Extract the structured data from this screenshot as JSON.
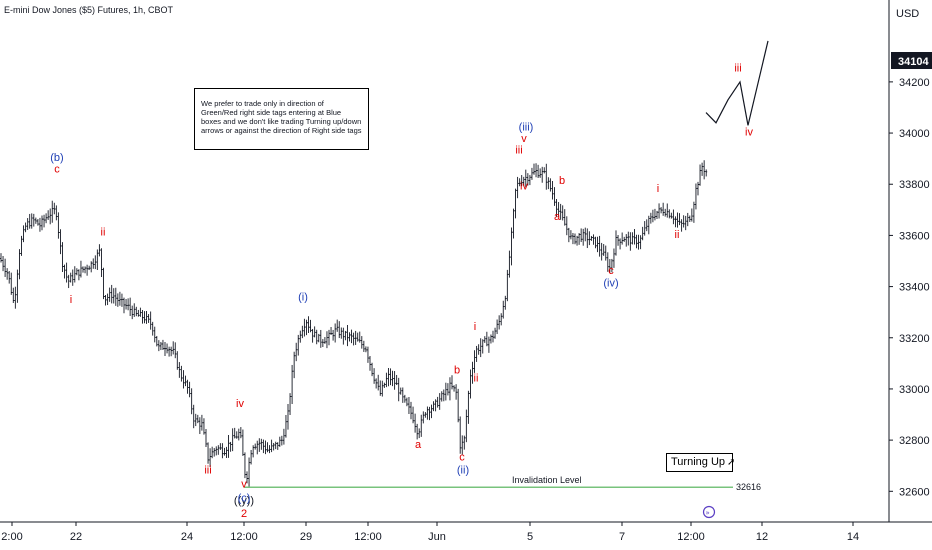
{
  "header": {
    "symbol": "E-mini Dow Jones ($5) Futures, 1h, CBOT"
  },
  "note": {
    "text": "We prefer to trade only in direction of Green/Red right side tags entering at Blue boxes and we don't like trading Turning up/down arrows or against the direction of Right side tags"
  },
  "turning_label": {
    "text": "Turning Up",
    "icon": "arrow-up-right-icon"
  },
  "replay_icon": "replay-icon",
  "colors": {
    "red": "#e00000",
    "blue": "#1f3fb5",
    "black": "#131722",
    "green": "#4caf50",
    "bg": "#ffffff"
  },
  "chart_data": {
    "type": "ohlc",
    "currency": "USD",
    "y_ticks": [
      32600,
      32800,
      33000,
      33200,
      33400,
      33600,
      33800,
      34000,
      34200
    ],
    "ylim": [
      32480,
      34520
    ],
    "current_price": "34104",
    "x_ticks": [
      "2:00",
      "22",
      "24",
      "12:00",
      "29",
      "12:00",
      "Jun",
      "5",
      "7",
      "12:00",
      "12",
      "14"
    ],
    "invalidation": {
      "label": "Invalidation Level",
      "value": 32616
    },
    "price_path": [
      [
        0,
        33510
      ],
      [
        8,
        33450
      ],
      [
        14,
        33330
      ],
      [
        20,
        33560
      ],
      [
        26,
        33640
      ],
      [
        33,
        33660
      ],
      [
        40,
        33640
      ],
      [
        48,
        33680
      ],
      [
        56,
        33700
      ],
      [
        62,
        33500
      ],
      [
        68,
        33420
      ],
      [
        76,
        33450
      ],
      [
        84,
        33470
      ],
      [
        92,
        33490
      ],
      [
        100,
        33540
      ],
      [
        104,
        33350
      ],
      [
        112,
        33370
      ],
      [
        120,
        33340
      ],
      [
        128,
        33320
      ],
      [
        136,
        33290
      ],
      [
        144,
        33280
      ],
      [
        152,
        33250
      ],
      [
        158,
        33160
      ],
      [
        166,
        33170
      ],
      [
        174,
        33140
      ],
      [
        180,
        33060
      ],
      [
        188,
        33000
      ],
      [
        194,
        32880
      ],
      [
        202,
        32860
      ],
      [
        208,
        32730
      ],
      [
        216,
        32770
      ],
      [
        224,
        32760
      ],
      [
        232,
        32800
      ],
      [
        240,
        32830
      ],
      [
        246,
        32640
      ],
      [
        252,
        32780
      ],
      [
        260,
        32790
      ],
      [
        268,
        32760
      ],
      [
        276,
        32780
      ],
      [
        282,
        32800
      ],
      [
        288,
        32900
      ],
      [
        294,
        33130
      ],
      [
        300,
        33220
      ],
      [
        306,
        33270
      ],
      [
        312,
        33220
      ],
      [
        320,
        33190
      ],
      [
        328,
        33200
      ],
      [
        336,
        33230
      ],
      [
        344,
        33210
      ],
      [
        352,
        33200
      ],
      [
        360,
        33180
      ],
      [
        366,
        33160
      ],
      [
        372,
        33070
      ],
      [
        380,
        32980
      ],
      [
        388,
        33050
      ],
      [
        396,
        33020
      ],
      [
        404,
        32950
      ],
      [
        412,
        32900
      ],
      [
        418,
        32830
      ],
      [
        426,
        32920
      ],
      [
        434,
        32930
      ],
      [
        442,
        32970
      ],
      [
        450,
        33010
      ],
      [
        456,
        32990
      ],
      [
        460,
        32780
      ],
      [
        464,
        32790
      ],
      [
        470,
        33050
      ],
      [
        476,
        33150
      ],
      [
        484,
        33180
      ],
      [
        492,
        33200
      ],
      [
        500,
        33270
      ],
      [
        506,
        33380
      ],
      [
        512,
        33620
      ],
      [
        516,
        33790
      ],
      [
        522,
        33820
      ],
      [
        528,
        33830
      ],
      [
        536,
        33850
      ],
      [
        544,
        33840
      ],
      [
        552,
        33770
      ],
      [
        558,
        33700
      ],
      [
        564,
        33650
      ],
      [
        572,
        33580
      ],
      [
        580,
        33600
      ],
      [
        588,
        33590
      ],
      [
        596,
        33570
      ],
      [
        604,
        33520
      ],
      [
        610,
        33470
      ],
      [
        616,
        33580
      ],
      [
        624,
        33590
      ],
      [
        632,
        33580
      ],
      [
        640,
        33580
      ],
      [
        648,
        33650
      ],
      [
        656,
        33690
      ],
      [
        664,
        33700
      ],
      [
        672,
        33680
      ],
      [
        680,
        33640
      ],
      [
        686,
        33650
      ],
      [
        692,
        33690
      ],
      [
        696,
        33780
      ],
      [
        702,
        33870
      ],
      [
        708,
        33840
      ]
    ],
    "projection": [
      [
        706,
        34080
      ],
      [
        716,
        34040
      ],
      [
        728,
        34130
      ],
      [
        740,
        34200
      ],
      [
        748,
        34030
      ],
      [
        768,
        34360
      ]
    ],
    "wave_labels": [
      {
        "text": "(b)",
        "x": 57,
        "y": 33890,
        "color": "blue"
      },
      {
        "text": "c",
        "x": 57,
        "y": 33845,
        "color": "red"
      },
      {
        "text": "ii",
        "x": 103,
        "y": 33600,
        "color": "red"
      },
      {
        "text": "i",
        "x": 71,
        "y": 33335,
        "color": "red"
      },
      {
        "text": "iv",
        "x": 240,
        "y": 32930,
        "color": "red"
      },
      {
        "text": "iii",
        "x": 208,
        "y": 32670,
        "color": "red"
      },
      {
        "text": "v",
        "x": 244,
        "y": 32615,
        "color": "red"
      },
      {
        "text": "((y))",
        "x": 244,
        "y": 32550,
        "color": "black"
      },
      {
        "text": "(c)",
        "x": 244,
        "y": 32560,
        "color": "blue"
      },
      {
        "text": "2",
        "x": 244,
        "y": 32500,
        "color": "red"
      },
      {
        "text": "(i)",
        "x": 303,
        "y": 33345,
        "color": "blue"
      },
      {
        "text": "a",
        "x": 418,
        "y": 32770,
        "color": "red"
      },
      {
        "text": "b",
        "x": 457,
        "y": 33060,
        "color": "red"
      },
      {
        "text": "c",
        "x": 462,
        "y": 32720,
        "color": "red"
      },
      {
        "text": "(ii)",
        "x": 463,
        "y": 32670,
        "color": "blue"
      },
      {
        "text": "i",
        "x": 475,
        "y": 33230,
        "color": "red"
      },
      {
        "text": "ii",
        "x": 476,
        "y": 33030,
        "color": "red"
      },
      {
        "text": "(iii)",
        "x": 526,
        "y": 34010,
        "color": "blue"
      },
      {
        "text": "v",
        "x": 524,
        "y": 33965,
        "color": "red"
      },
      {
        "text": "iii",
        "x": 519,
        "y": 33920,
        "color": "red"
      },
      {
        "text": "iv",
        "x": 524,
        "y": 33780,
        "color": "red"
      },
      {
        "text": "b",
        "x": 562,
        "y": 33800,
        "color": "red"
      },
      {
        "text": "a",
        "x": 557,
        "y": 33660,
        "color": "red"
      },
      {
        "text": "c",
        "x": 611,
        "y": 33450,
        "color": "red"
      },
      {
        "text": "(iv)",
        "x": 611,
        "y": 33400,
        "color": "blue"
      },
      {
        "text": "i",
        "x": 658,
        "y": 33770,
        "color": "red"
      },
      {
        "text": "ii",
        "x": 677,
        "y": 33590,
        "color": "red"
      },
      {
        "text": "iii",
        "x": 738,
        "y": 34240,
        "color": "red"
      },
      {
        "text": "iv",
        "x": 749,
        "y": 33990,
        "color": "red"
      }
    ]
  }
}
